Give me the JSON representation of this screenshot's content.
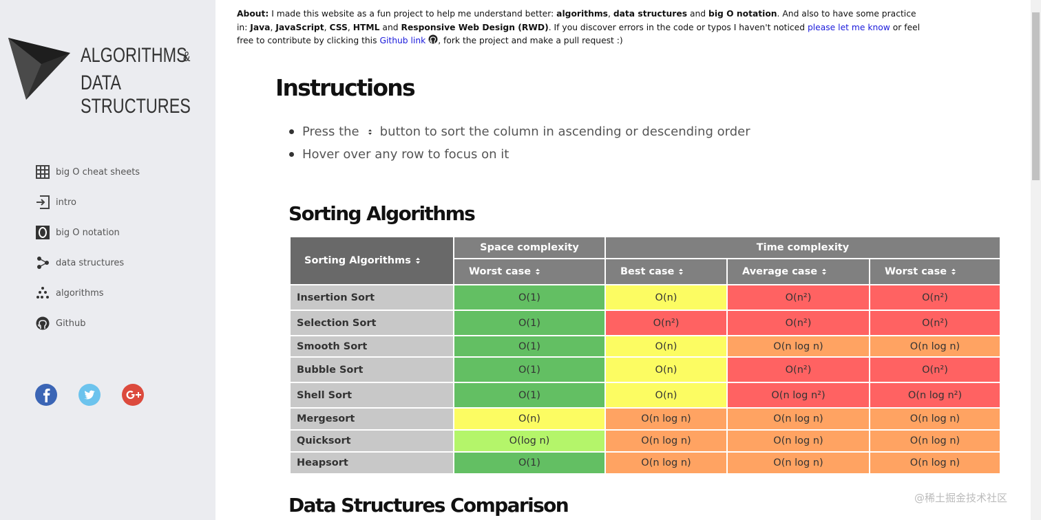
{
  "about": [
    "About:",
    "I made this website as a fun project to help me understand better:",
    "algorithms",
    ",",
    "data structures",
    "and",
    "big O notation",
    ". And also to have some practice in:",
    "Java",
    ",",
    "JavaScript",
    ",",
    "CSS",
    ",",
    "HTML",
    "and",
    "Responsive Web Design (RWD)",
    ". If you discover errors in the code or typos I haven't noticed",
    "please let me know",
    "or feel free to contribute by clicking this",
    "Github link",
    ", fork the project and make a pull request :)"
  ],
  "logo": {
    "line1": "ALGORITHMS",
    "amp": "&",
    "line2": "DATA STRUCTURES"
  },
  "nav": [
    "big O cheat sheets",
    "intro",
    "big O notation",
    "data structures",
    "algorithms",
    "Github"
  ],
  "instructions": {
    "title": "Instructions",
    "bullet1_before": "Press the",
    "bullet1_after": "button to sort the column in ascending or descending order",
    "bullet2": "Hover over any row to focus on it"
  },
  "sorting": {
    "title": "Sorting Algorithms",
    "header": {
      "name": "Sorting Algorithms",
      "space": "Space complexity",
      "time": "Time complexity",
      "columns": [
        "Worst case",
        "Best case",
        "Average case",
        "Worst case"
      ]
    },
    "rows": [
      {
        "name": "Insertion Sort",
        "cells": [
          {
            "text": "O(1)",
            "color": "#63bf63"
          },
          {
            "text": "O(n)",
            "color": "#fcfc62"
          },
          {
            "text": "O(n²)",
            "color": "#ff6262"
          },
          {
            "text": "O(n²)",
            "color": "#ff6262"
          }
        ]
      },
      {
        "name": "Selection Sort",
        "cells": [
          {
            "text": "O(1)",
            "color": "#63bf63"
          },
          {
            "text": "O(n²)",
            "color": "#ff6262"
          },
          {
            "text": "O(n²)",
            "color": "#ff6262"
          },
          {
            "text": "O(n²)",
            "color": "#ff6262"
          }
        ]
      },
      {
        "name": "Smooth Sort",
        "cells": [
          {
            "text": "O(1)",
            "color": "#63bf63"
          },
          {
            "text": "O(n)",
            "color": "#fcfc62"
          },
          {
            "text": "O(n log n)",
            "color": "#ffa362"
          },
          {
            "text": "O(n log n)",
            "color": "#ffa362"
          }
        ]
      },
      {
        "name": "Bubble Sort",
        "cells": [
          {
            "text": "O(1)",
            "color": "#63bf63"
          },
          {
            "text": "O(n)",
            "color": "#fcfc62"
          },
          {
            "text": "O(n²)",
            "color": "#ff6262"
          },
          {
            "text": "O(n²)",
            "color": "#ff6262"
          }
        ]
      },
      {
        "name": "Shell Sort",
        "cells": [
          {
            "text": "O(1)",
            "color": "#63bf63"
          },
          {
            "text": "O(n)",
            "color": "#fcfc62"
          },
          {
            "text": "O(n log n²)",
            "color": "#ff6262"
          },
          {
            "text": "O(n log n²)",
            "color": "#ff6262"
          }
        ]
      },
      {
        "name": "Mergesort",
        "cells": [
          {
            "text": "O(n)",
            "color": "#fcfc62"
          },
          {
            "text": "O(n log n)",
            "color": "#ffa362"
          },
          {
            "text": "O(n log n)",
            "color": "#ffa362"
          },
          {
            "text": "O(n log n)",
            "color": "#ffa362"
          }
        ]
      },
      {
        "name": "Quicksort",
        "cells": [
          {
            "text": "O(log n)",
            "color": "#b4f56a"
          },
          {
            "text": "O(n log n)",
            "color": "#ffa362"
          },
          {
            "text": "O(n log n)",
            "color": "#ffa362"
          },
          {
            "text": "O(n log n)",
            "color": "#ffa362"
          }
        ]
      },
      {
        "name": "Heapsort",
        "cells": [
          {
            "text": "O(1)",
            "color": "#63bf63"
          },
          {
            "text": "O(n log n)",
            "color": "#ffa362"
          },
          {
            "text": "O(n log n)",
            "color": "#ffa362"
          },
          {
            "text": "O(n log n)",
            "color": "#ffa362"
          }
        ]
      }
    ]
  },
  "next_title": "Data Structures Comparison",
  "watermark": "@稀土掘金技术社区"
}
